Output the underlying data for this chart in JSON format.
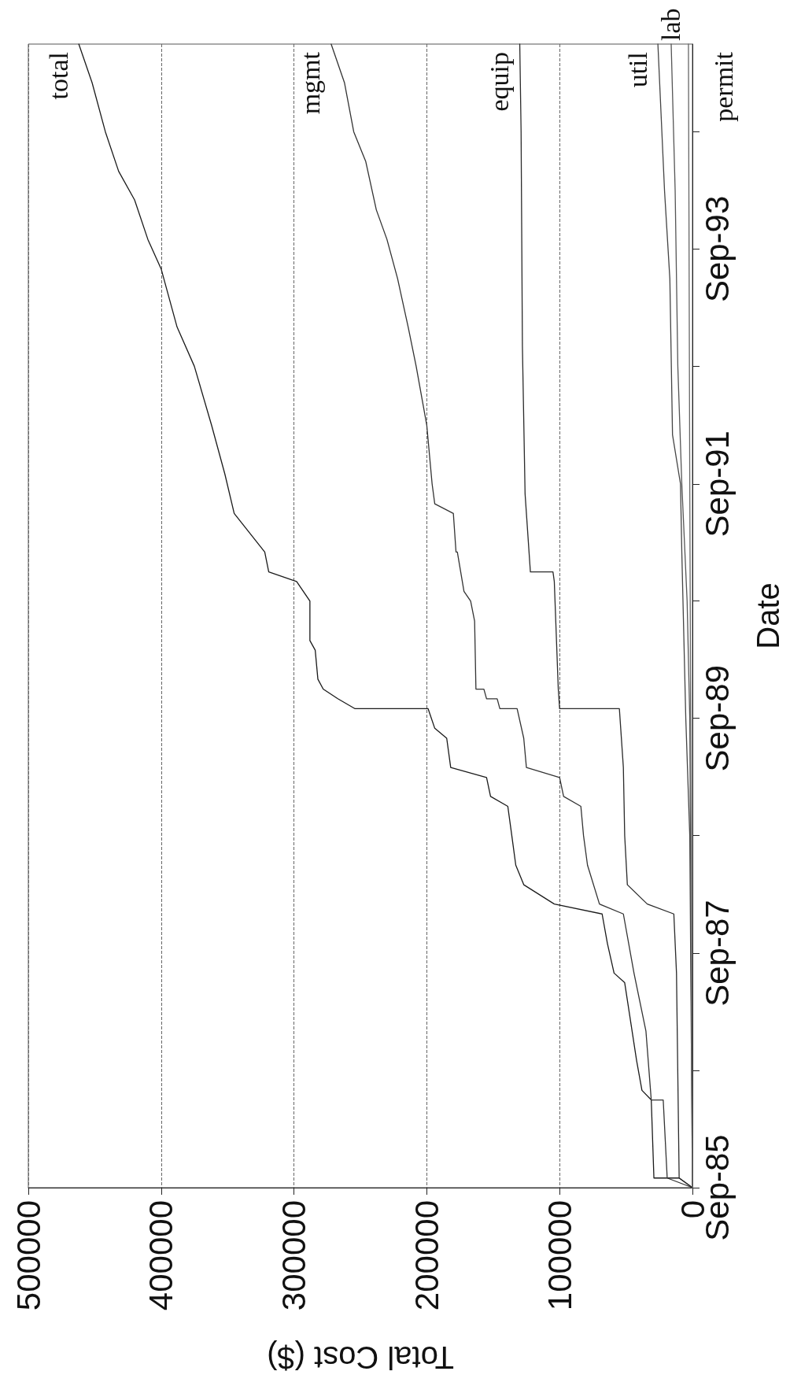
{
  "chart_data": {
    "type": "line",
    "orientation": "horizontal",
    "xlabel": "Total Cost ($)",
    "ylabel": "Date",
    "ylim": [
      "1985-09",
      "1995-06"
    ],
    "yticks": [
      {
        "value": "1985-09",
        "label": "Sep-85"
      },
      {
        "value": "1986-09",
        "label": null
      },
      {
        "value": "1987-09",
        "label": "Sep-87"
      },
      {
        "value": "1988-09",
        "label": null
      },
      {
        "value": "1989-09",
        "label": "Sep-89"
      },
      {
        "value": "1990-09",
        "label": null
      },
      {
        "value": "1991-09",
        "label": "Sep-91"
      },
      {
        "value": "1992-09",
        "label": null
      },
      {
        "value": "1993-09",
        "label": "Sep-93"
      },
      {
        "value": "1994-09",
        "label": null
      }
    ],
    "xlim": [
      500000,
      0
    ],
    "xticks": [
      0,
      100000,
      200000,
      300000,
      400000,
      500000
    ],
    "grid": "x",
    "legend": false,
    "marker": "none",
    "line_style": "solid",
    "series": [
      {
        "name": "total",
        "color": "#1a1a1a",
        "x": [
          "1985-09",
          "1985-10",
          "1985-10",
          "1986-06",
          "1986-07",
          "1986-10",
          "1987-06",
          "1987-07",
          "1987-10",
          "1988-01",
          "1988-02",
          "1988-04",
          "1988-06",
          "1988-09",
          "1988-12",
          "1989-01",
          "1989-03",
          "1989-04",
          "1989-07",
          "1989-08",
          "1989-10",
          "1989-10",
          "1989-11",
          "1989-12",
          "1990-01",
          "1990-04",
          "1990-05",
          "1990-09",
          "1990-11",
          "1990-12",
          "1991-02",
          "1991-06",
          "1991-10",
          "1992-03",
          "1992-09",
          "1993-01",
          "1993-07",
          "1993-10",
          "1994-02",
          "1994-05",
          "1994-09",
          "1995-02",
          "1995-06"
        ],
        "values": [
          0,
          10000,
          29000,
          31000,
          38000,
          42000,
          51000,
          59000,
          64000,
          68000,
          104000,
          127000,
          133000,
          136000,
          139000,
          152000,
          155000,
          182000,
          185000,
          194000,
          199000,
          254000,
          267000,
          278000,
          282000,
          284000,
          288000,
          288000,
          298000,
          319000,
          322000,
          345000,
          352000,
          362000,
          375000,
          388000,
          400000,
          410000,
          420000,
          432000,
          442000,
          452000,
          462000
        ]
      },
      {
        "name": "mgmt",
        "color": "#333333",
        "x": [
          "1985-09",
          "1985-10",
          "1986-06",
          "1986-06",
          "1987-01",
          "1987-07",
          "1988-01",
          "1988-02",
          "1988-06",
          "1988-09",
          "1988-12",
          "1989-01",
          "1989-03",
          "1989-04",
          "1989-07",
          "1989-10",
          "1989-10",
          "1989-11",
          "1989-11",
          "1989-12",
          "1989-12",
          "1990-07",
          "1990-09",
          "1990-10",
          "1991-02",
          "1991-02",
          "1991-06",
          "1991-07",
          "1991-09",
          "1992-03",
          "1992-09",
          "1993-01",
          "1993-06",
          "1993-10",
          "1994-01",
          "1994-06",
          "1994-09",
          "1995-02",
          "1995-06"
        ],
        "values": [
          0,
          19000,
          22000,
          31000,
          35000,
          44000,
          52000,
          70000,
          79000,
          82000,
          84000,
          97000,
          100000,
          125000,
          127000,
          132000,
          145000,
          147000,
          155000,
          157000,
          163000,
          164000,
          167000,
          172000,
          177000,
          178000,
          180000,
          194000,
          196000,
          200000,
          208000,
          214000,
          222000,
          230000,
          238000,
          246000,
          255000,
          262000,
          272000
        ]
      },
      {
        "name": "equip",
        "color": "#2a2a2a",
        "x": [
          "1985-09",
          "1985-10",
          "1987-07",
          "1988-01",
          "1988-02",
          "1988-04",
          "1988-09",
          "1989-04",
          "1989-08",
          "1989-10",
          "1989-10",
          "1989-12",
          "1990-11",
          "1990-12",
          "1990-12",
          "1991-08",
          "1992-11",
          "1994-09",
          "1995-06"
        ],
        "values": [
          0,
          10000,
          12000,
          14000,
          34000,
          49000,
          51000,
          52000,
          54000,
          55000,
          100000,
          101000,
          104000,
          105000,
          122000,
          126000,
          128000,
          129000,
          130000
        ]
      },
      {
        "name": "util",
        "color": "#444444",
        "x": [
          "1985-09",
          "1988-09",
          "1989-09",
          "1991-02",
          "1991-09",
          "1992-02",
          "1993-06",
          "1994-03",
          "1995-06"
        ],
        "values": [
          0,
          2000,
          5000,
          8000,
          9000,
          15000,
          17000,
          21000,
          26000
        ]
      },
      {
        "name": "lab",
        "color": "#555555",
        "x": [
          "1985-09",
          "1989-09",
          "1990-09",
          "1991-09",
          "1992-09",
          "1994-03",
          "1995-06"
        ],
        "values": [
          0,
          2000,
          4000,
          8000,
          11000,
          13000,
          16000
        ]
      },
      {
        "name": "permit",
        "color": "#666666",
        "x": [
          "1985-09",
          "1988-09",
          "1991-09",
          "1995-06"
        ],
        "values": [
          0,
          1000,
          2000,
          3000
        ]
      }
    ]
  }
}
